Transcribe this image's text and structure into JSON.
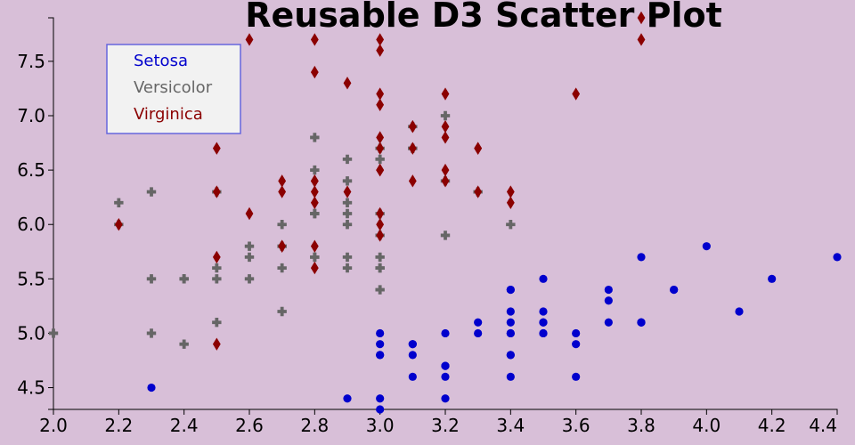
{
  "chart_data": {
    "type": "scatter",
    "title": "Reusable D3 Scatter Plot",
    "xlabel": "",
    "ylabel": "",
    "xlim": [
      2.0,
      4.4
    ],
    "ylim": [
      4.3,
      7.9
    ],
    "x_ticks": [
      "2.0",
      "2.2",
      "2.4",
      "2.6",
      "2.8",
      "3.0",
      "3.2",
      "3.4",
      "3.6",
      "3.8",
      "4.0",
      "4.2",
      "4.4"
    ],
    "y_ticks": [
      "4.5",
      "5.0",
      "5.5",
      "6.0",
      "6.5",
      "7.0",
      "7.5"
    ],
    "grid": false,
    "legend_position": "top-left",
    "series": [
      {
        "name": "Setosa",
        "marker": "circle",
        "color": "#0000cd",
        "points": [
          [
            3.5,
            5.1
          ],
          [
            3.0,
            4.9
          ],
          [
            3.2,
            4.7
          ],
          [
            3.1,
            4.6
          ],
          [
            3.6,
            5.0
          ],
          [
            3.9,
            5.4
          ],
          [
            3.4,
            4.6
          ],
          [
            3.4,
            5.0
          ],
          [
            2.9,
            4.4
          ],
          [
            3.1,
            4.9
          ],
          [
            3.7,
            5.4
          ],
          [
            3.4,
            4.8
          ],
          [
            3.0,
            4.8
          ],
          [
            3.0,
            4.3
          ],
          [
            4.0,
            5.8
          ],
          [
            4.4,
            5.7
          ],
          [
            3.9,
            5.4
          ],
          [
            3.5,
            5.1
          ],
          [
            3.8,
            5.7
          ],
          [
            3.8,
            5.1
          ],
          [
            3.4,
            5.4
          ],
          [
            3.7,
            5.1
          ],
          [
            3.6,
            4.6
          ],
          [
            3.3,
            5.1
          ],
          [
            3.4,
            4.8
          ],
          [
            3.0,
            5.0
          ],
          [
            3.4,
            5.0
          ],
          [
            3.5,
            5.2
          ],
          [
            3.4,
            5.2
          ],
          [
            3.2,
            4.7
          ],
          [
            3.1,
            4.8
          ],
          [
            3.4,
            5.4
          ],
          [
            4.1,
            5.2
          ],
          [
            4.2,
            5.5
          ],
          [
            3.1,
            4.9
          ],
          [
            3.2,
            5.0
          ],
          [
            3.5,
            5.5
          ],
          [
            3.6,
            4.9
          ],
          [
            3.0,
            4.4
          ],
          [
            3.4,
            5.1
          ],
          [
            3.5,
            5.0
          ],
          [
            2.3,
            4.5
          ],
          [
            3.2,
            4.4
          ],
          [
            3.5,
            5.0
          ],
          [
            3.8,
            5.1
          ],
          [
            3.0,
            4.8
          ],
          [
            3.8,
            5.1
          ],
          [
            3.2,
            4.6
          ],
          [
            3.7,
            5.3
          ],
          [
            3.3,
            5.0
          ]
        ]
      },
      {
        "name": "Versicolor",
        "marker": "cross",
        "color": "#666666",
        "points": [
          [
            3.2,
            7.0
          ],
          [
            3.2,
            6.4
          ],
          [
            3.1,
            6.9
          ],
          [
            2.3,
            5.5
          ],
          [
            2.8,
            6.5
          ],
          [
            2.8,
            5.7
          ],
          [
            3.3,
            6.3
          ],
          [
            2.4,
            4.9
          ],
          [
            2.9,
            6.6
          ],
          [
            2.7,
            5.2
          ],
          [
            2.0,
            5.0
          ],
          [
            3.0,
            5.9
          ],
          [
            2.2,
            6.0
          ],
          [
            2.9,
            6.1
          ],
          [
            2.9,
            5.6
          ],
          [
            3.1,
            6.7
          ],
          [
            3.0,
            5.6
          ],
          [
            2.7,
            5.8
          ],
          [
            2.2,
            6.2
          ],
          [
            2.5,
            5.6
          ],
          [
            3.2,
            5.9
          ],
          [
            2.8,
            6.1
          ],
          [
            2.5,
            6.3
          ],
          [
            2.8,
            6.1
          ],
          [
            2.9,
            6.4
          ],
          [
            3.0,
            6.6
          ],
          [
            2.8,
            6.8
          ],
          [
            3.0,
            6.7
          ],
          [
            2.9,
            6.0
          ],
          [
            2.6,
            5.7
          ],
          [
            2.4,
            5.5
          ],
          [
            2.4,
            5.5
          ],
          [
            2.7,
            5.8
          ],
          [
            2.7,
            6.0
          ],
          [
            3.0,
            5.4
          ],
          [
            3.4,
            6.0
          ],
          [
            3.1,
            6.7
          ],
          [
            2.3,
            6.3
          ],
          [
            3.0,
            5.6
          ],
          [
            2.5,
            5.5
          ],
          [
            2.6,
            5.5
          ],
          [
            3.0,
            6.1
          ],
          [
            2.6,
            5.8
          ],
          [
            2.3,
            5.0
          ],
          [
            2.7,
            5.6
          ],
          [
            3.0,
            5.7
          ],
          [
            2.9,
            5.7
          ],
          [
            2.9,
            6.2
          ],
          [
            2.5,
            5.1
          ],
          [
            2.8,
            5.7
          ]
        ]
      },
      {
        "name": "Virginica",
        "marker": "diamond",
        "color": "#8b0000",
        "points": [
          [
            3.3,
            6.3
          ],
          [
            2.7,
            5.8
          ],
          [
            3.0,
            7.1
          ],
          [
            2.9,
            6.3
          ],
          [
            3.0,
            6.5
          ],
          [
            3.0,
            7.6
          ],
          [
            2.5,
            4.9
          ],
          [
            2.9,
            7.3
          ],
          [
            2.5,
            6.7
          ],
          [
            3.6,
            7.2
          ],
          [
            3.2,
            6.5
          ],
          [
            2.7,
            6.4
          ],
          [
            3.0,
            6.8
          ],
          [
            2.5,
            5.7
          ],
          [
            2.8,
            5.8
          ],
          [
            3.2,
            6.4
          ],
          [
            3.0,
            6.5
          ],
          [
            3.8,
            7.7
          ],
          [
            2.6,
            7.7
          ],
          [
            2.2,
            6.0
          ],
          [
            3.2,
            6.9
          ],
          [
            2.8,
            5.6
          ],
          [
            2.8,
            7.7
          ],
          [
            2.7,
            6.3
          ],
          [
            3.3,
            6.7
          ],
          [
            3.2,
            7.2
          ],
          [
            2.8,
            6.2
          ],
          [
            3.0,
            6.1
          ],
          [
            2.8,
            6.4
          ],
          [
            3.0,
            7.2
          ],
          [
            2.8,
            7.4
          ],
          [
            3.8,
            7.9
          ],
          [
            2.8,
            6.4
          ],
          [
            2.8,
            6.3
          ],
          [
            2.6,
            6.1
          ],
          [
            3.0,
            7.7
          ],
          [
            3.4,
            6.3
          ],
          [
            3.1,
            6.4
          ],
          [
            3.0,
            6.0
          ],
          [
            3.1,
            6.9
          ],
          [
            3.1,
            6.7
          ],
          [
            3.1,
            6.9
          ],
          [
            2.7,
            5.8
          ],
          [
            3.2,
            6.8
          ],
          [
            3.3,
            6.7
          ],
          [
            3.0,
            6.7
          ],
          [
            2.5,
            6.3
          ],
          [
            3.0,
            6.5
          ],
          [
            3.4,
            6.2
          ],
          [
            3.0,
            5.9
          ]
        ]
      }
    ]
  }
}
